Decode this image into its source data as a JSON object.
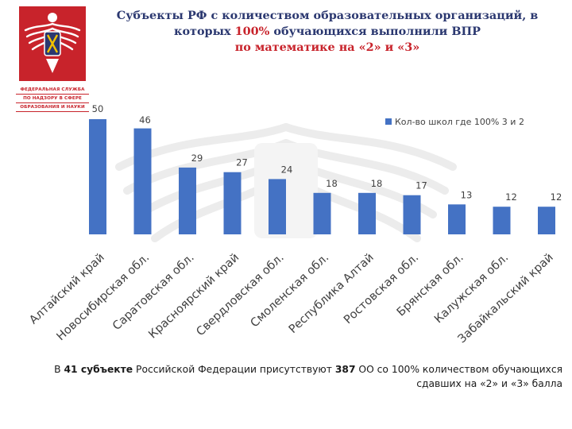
{
  "title": {
    "line1": "Субъекты РФ с количеством образовательных организаций, в",
    "line2_pre": "которых ",
    "line2_highlight": "100%",
    "line2_post": " обучающихся выполнили ВПР",
    "line3": "по математике на «2» и «3»"
  },
  "logo": {
    "line1": "ФЕДЕРАЛЬНАЯ СЛУЖБА",
    "line2": "ПО НАДЗОРУ В СФЕРЕ",
    "line3": "ОБРАЗОВАНИЯ И НАУКИ",
    "icon": "federal-eagle-emblem"
  },
  "colors": {
    "bar": "#4472c4",
    "title": "#2b3870",
    "accent": "#c8232b"
  },
  "chart_data": {
    "type": "bar",
    "categories": [
      "Алтайский край",
      "Новосибирская обл.",
      "Саратовская обл.",
      "Красноярский край",
      "Свердловская обл.",
      "Смоленская обл.",
      "Республика Алтай",
      "Ростовская обл.",
      "Брянская обл.",
      "Калужская обл.",
      "Забайкальский край"
    ],
    "series": [
      {
        "name": "Кол-во школ где 100%  3 и 2",
        "values": [
          50,
          46,
          29,
          27,
          24,
          18,
          18,
          17,
          13,
          12,
          12
        ]
      }
    ],
    "data_labels": true,
    "legend_position": "top-right",
    "grid": false,
    "ylim": [
      0,
      50
    ]
  },
  "footer": {
    "p1": "В ",
    "b1": "41 субъекте",
    "p2": " Российской Федерации присутствуют ",
    "b2": "387",
    "p3": " ОО со 100% количеством обучающихся",
    "line2": "сдавших на «2» и «3» балла"
  }
}
